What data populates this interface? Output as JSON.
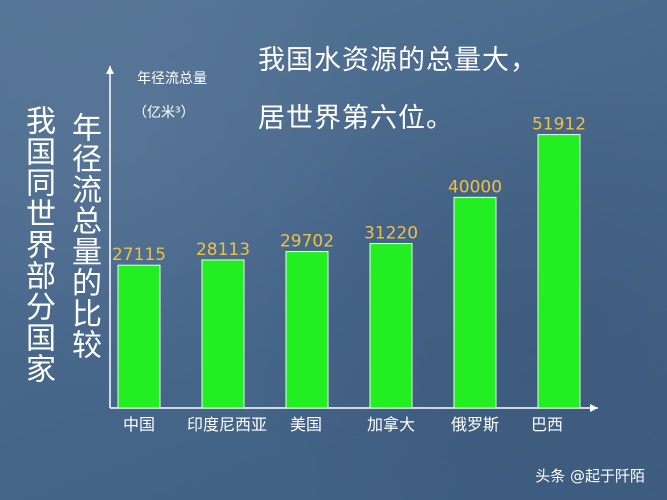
{
  "vertical_titles": [
    "我国同世界部分国家",
    "年径流总量的比较"
  ],
  "headline": [
    "我国水资源的总量大，",
    "居世界第六位。"
  ],
  "watermark": "头条 @起于阡陌",
  "chart_data": {
    "type": "bar",
    "categories": [
      "中国",
      "印度尼西亚",
      "美国",
      "加拿大",
      "俄罗斯",
      "巴西"
    ],
    "values": [
      27115,
      28113,
      29702,
      31220,
      40000,
      51912
    ],
    "ylabel": "年径流总量",
    "yunit": "（亿米³）",
    "ylim": [
      0,
      60000
    ],
    "grid": false,
    "colors": {
      "bar": "#22ee22",
      "bar_stroke": "#e8ffe8",
      "value_label": "#f0c040",
      "axis": "#ffffff",
      "category_label": "#ffffff"
    }
  }
}
